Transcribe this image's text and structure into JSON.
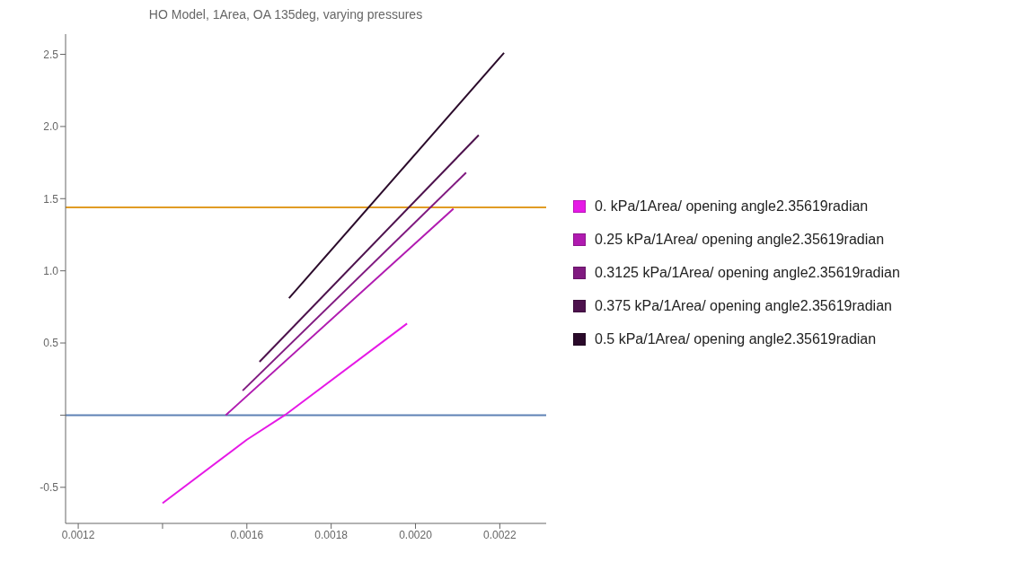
{
  "chart_data": {
    "type": "line",
    "title": "HO Model, 1Area, OA 135deg, varying pressures",
    "xlim": [
      0.00117,
      0.00231
    ],
    "ylim": [
      -0.75,
      2.64
    ],
    "xticks": [
      0.0012,
      {
        "value": 0.0014,
        "label": null
      },
      0.0016,
      0.0018,
      {
        "value": 0.002,
        "label": "0.0020"
      },
      0.0022
    ],
    "yticks": [
      -0.5,
      {
        "value": 0,
        "label": null
      },
      0.5,
      {
        "value": 1,
        "label": "1.0"
      },
      1.5,
      {
        "value": 2,
        "label": "2.0"
      },
      2.5
    ],
    "legend": "right",
    "marker": "none",
    "line_style": "solid",
    "series": [
      {
        "name": "0. kPa/1Area/ opening angle2.35619radian",
        "color": "#e619e6",
        "x": [
          0.0014,
          0.0016,
          0.00169,
          0.00198
        ],
        "values": [
          -0.61,
          -0.17,
          0,
          0.635
        ]
      },
      {
        "name": "0.25 kPa/1Area/ opening angle2.35619radian",
        "color": "#b01ab0",
        "x": [
          0.00155,
          0.00209
        ],
        "values": [
          0,
          1.43
        ]
      },
      {
        "name": "0.3125 kPa/1Area/ opening angle2.35619radian",
        "color": "#801a80",
        "x": [
          0.00159,
          0.00212
        ],
        "values": [
          0.17,
          1.68
        ]
      },
      {
        "name": "0.375 kPa/1Area/ opening angle2.35619radian",
        "color": "#4d124d",
        "x": [
          0.00163,
          0.00215
        ],
        "values": [
          0.37,
          1.94
        ]
      },
      {
        "name": "0.5 kPa/1Area/ opening angle2.35619radian",
        "color": "#2a0a2a",
        "x": [
          0.0017,
          0.00221
        ],
        "values": [
          0.81,
          2.51
        ]
      }
    ],
    "ref_lines": [
      {
        "axis": "y",
        "value": 0,
        "label": null,
        "color": "#5e81b5"
      },
      {
        "axis": "y",
        "value": 1.44,
        "label": null,
        "color": "#e19c24"
      }
    ]
  }
}
